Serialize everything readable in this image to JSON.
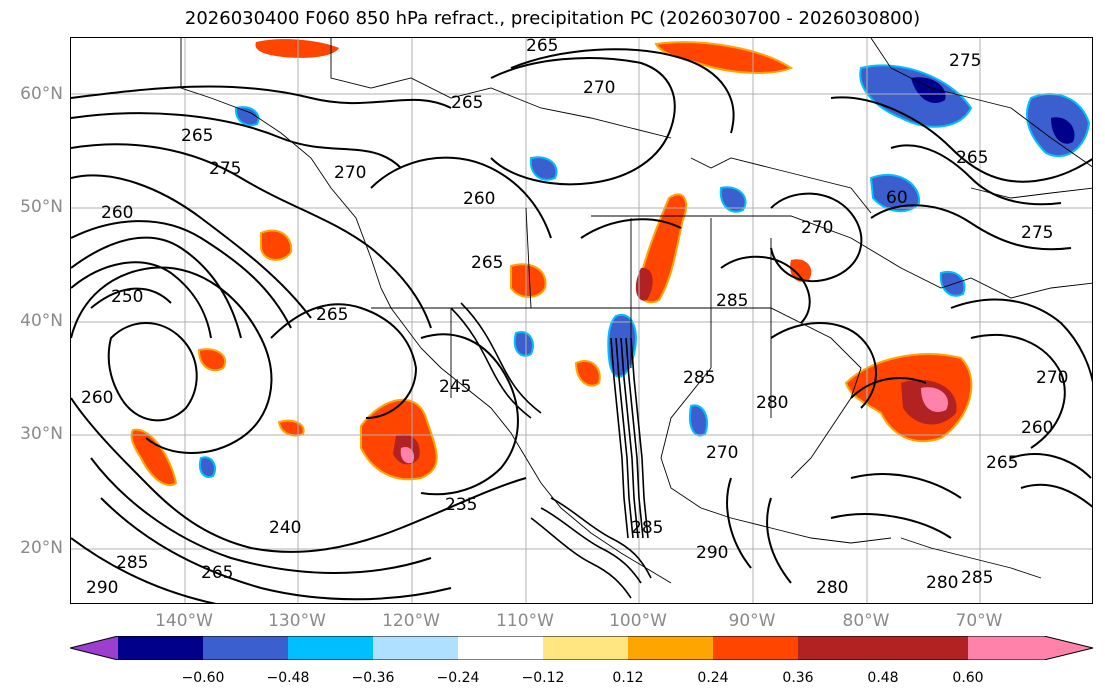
{
  "title": "2026030400 F060 850 hPa refract., precipitation PC (2026030700 - 2026030800)",
  "lat_labels": [
    "60°N",
    "50°N",
    "40°N",
    "30°N",
    "20°N"
  ],
  "lon_labels": [
    "140°W",
    "130°W",
    "120°W",
    "110°W",
    "100°W",
    "90°W",
    "80°W",
    "70°W"
  ],
  "contour_labels": [
    "265",
    "270",
    "275",
    "265",
    "275",
    "270",
    "265",
    "260",
    "250",
    "265",
    "260",
    "245",
    "235",
    "240",
    "265",
    "285",
    "290",
    "285",
    "285",
    "280",
    "270",
    "265",
    "260",
    "270",
    "265",
    "260",
    "275",
    "270",
    "60",
    "280",
    "285",
    "290",
    "280",
    "285",
    "265"
  ],
  "colorbar": {
    "colors": [
      "#9c3fd1",
      "#00008b",
      "#3b5fcf",
      "#00bfff",
      "#b0e0ff",
      "#ffffff",
      "#ffe680",
      "#ffa500",
      "#ff4500",
      "#b22222",
      "#ff82ab"
    ],
    "tick_labels": [
      "−0.60",
      "−0.48",
      "−0.36",
      "−0.24",
      "−0.12",
      "0.12",
      "0.24",
      "0.36",
      "0.48",
      "0.60"
    ]
  }
}
